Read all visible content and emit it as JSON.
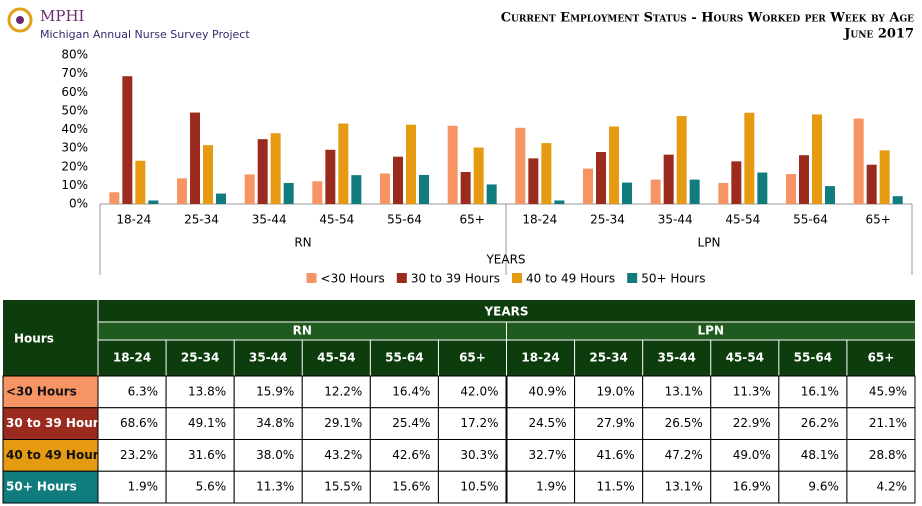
{
  "logo": {
    "mark": "MPHI",
    "name": "Michigan Annual Nurse Survey Project"
  },
  "chart_data": {
    "type": "bar",
    "title": "Current Employment Status - Hours Worked per Week by Age",
    "subtitle": "June 2017",
    "xlabel": "YEARS",
    "groups": [
      "RN",
      "LPN"
    ],
    "categories": [
      "18-24",
      "25-34",
      "35-44",
      "45-54",
      "55-64",
      "65+",
      "18-24",
      "25-34",
      "35-44",
      "45-54",
      "55-64",
      "65+"
    ],
    "series": [
      {
        "name": "<30 Hours",
        "color": "#f79464",
        "values": [
          6.3,
          13.8,
          15.9,
          12.2,
          16.4,
          42.0,
          40.9,
          19.0,
          13.1,
          11.3,
          16.1,
          45.9
        ],
        "value_labels": [
          "6.3%",
          "13.8%",
          "15.9%",
          "12.2%",
          "16.4%",
          "42.0%",
          "40.9%",
          "19.0%",
          "13.1%",
          "11.3%",
          "16.1%",
          "45.9%"
        ]
      },
      {
        "name": "30 to 39 Hours",
        "color": "#9b2a1f",
        "values": [
          68.6,
          49.1,
          34.8,
          29.1,
          25.4,
          17.2,
          24.5,
          27.9,
          26.5,
          22.9,
          26.2,
          21.1
        ],
        "value_labels": [
          "68.6%",
          "49.1%",
          "34.8%",
          "29.1%",
          "25.4%",
          "17.2%",
          "24.5%",
          "27.9%",
          "26.5%",
          "22.9%",
          "26.2%",
          "21.1%"
        ]
      },
      {
        "name": "40 to 49 Hours",
        "color": "#e59a12",
        "values": [
          23.2,
          31.6,
          38.0,
          43.2,
          42.6,
          30.3,
          32.7,
          41.6,
          47.2,
          49.0,
          48.1,
          28.8
        ],
        "value_labels": [
          "23.2%",
          "31.6%",
          "38.0%",
          "43.2%",
          "42.6%",
          "30.3%",
          "32.7%",
          "41.6%",
          "47.2%",
          "49.0%",
          "48.1%",
          "28.8%"
        ]
      },
      {
        "name": "50+ Hours",
        "color": "#117c7e",
        "values": [
          1.9,
          5.6,
          11.3,
          15.5,
          15.6,
          10.5,
          1.9,
          11.5,
          13.1,
          16.9,
          9.6,
          4.2
        ],
        "value_labels": [
          "1.9%",
          "5.6%",
          "11.3%",
          "15.5%",
          "15.6%",
          "10.5%",
          "1.9%",
          "11.5%",
          "13.1%",
          "16.9%",
          "9.6%",
          "4.2%"
        ]
      }
    ],
    "ylim": [
      0,
      80
    ],
    "yticks": [
      {
        "value": 0,
        "label": "0%"
      },
      {
        "value": 10,
        "label": "10%"
      },
      {
        "value": 20,
        "label": "20%"
      },
      {
        "value": 30,
        "label": "30%"
      },
      {
        "value": 40,
        "label": "40%"
      },
      {
        "value": 50,
        "label": "50%"
      },
      {
        "value": 60,
        "label": "60%"
      },
      {
        "value": 70,
        "label": "70%"
      },
      {
        "value": 80,
        "label": "80%"
      }
    ],
    "grid": false
  },
  "table": {
    "row_header": "Hours"
  }
}
